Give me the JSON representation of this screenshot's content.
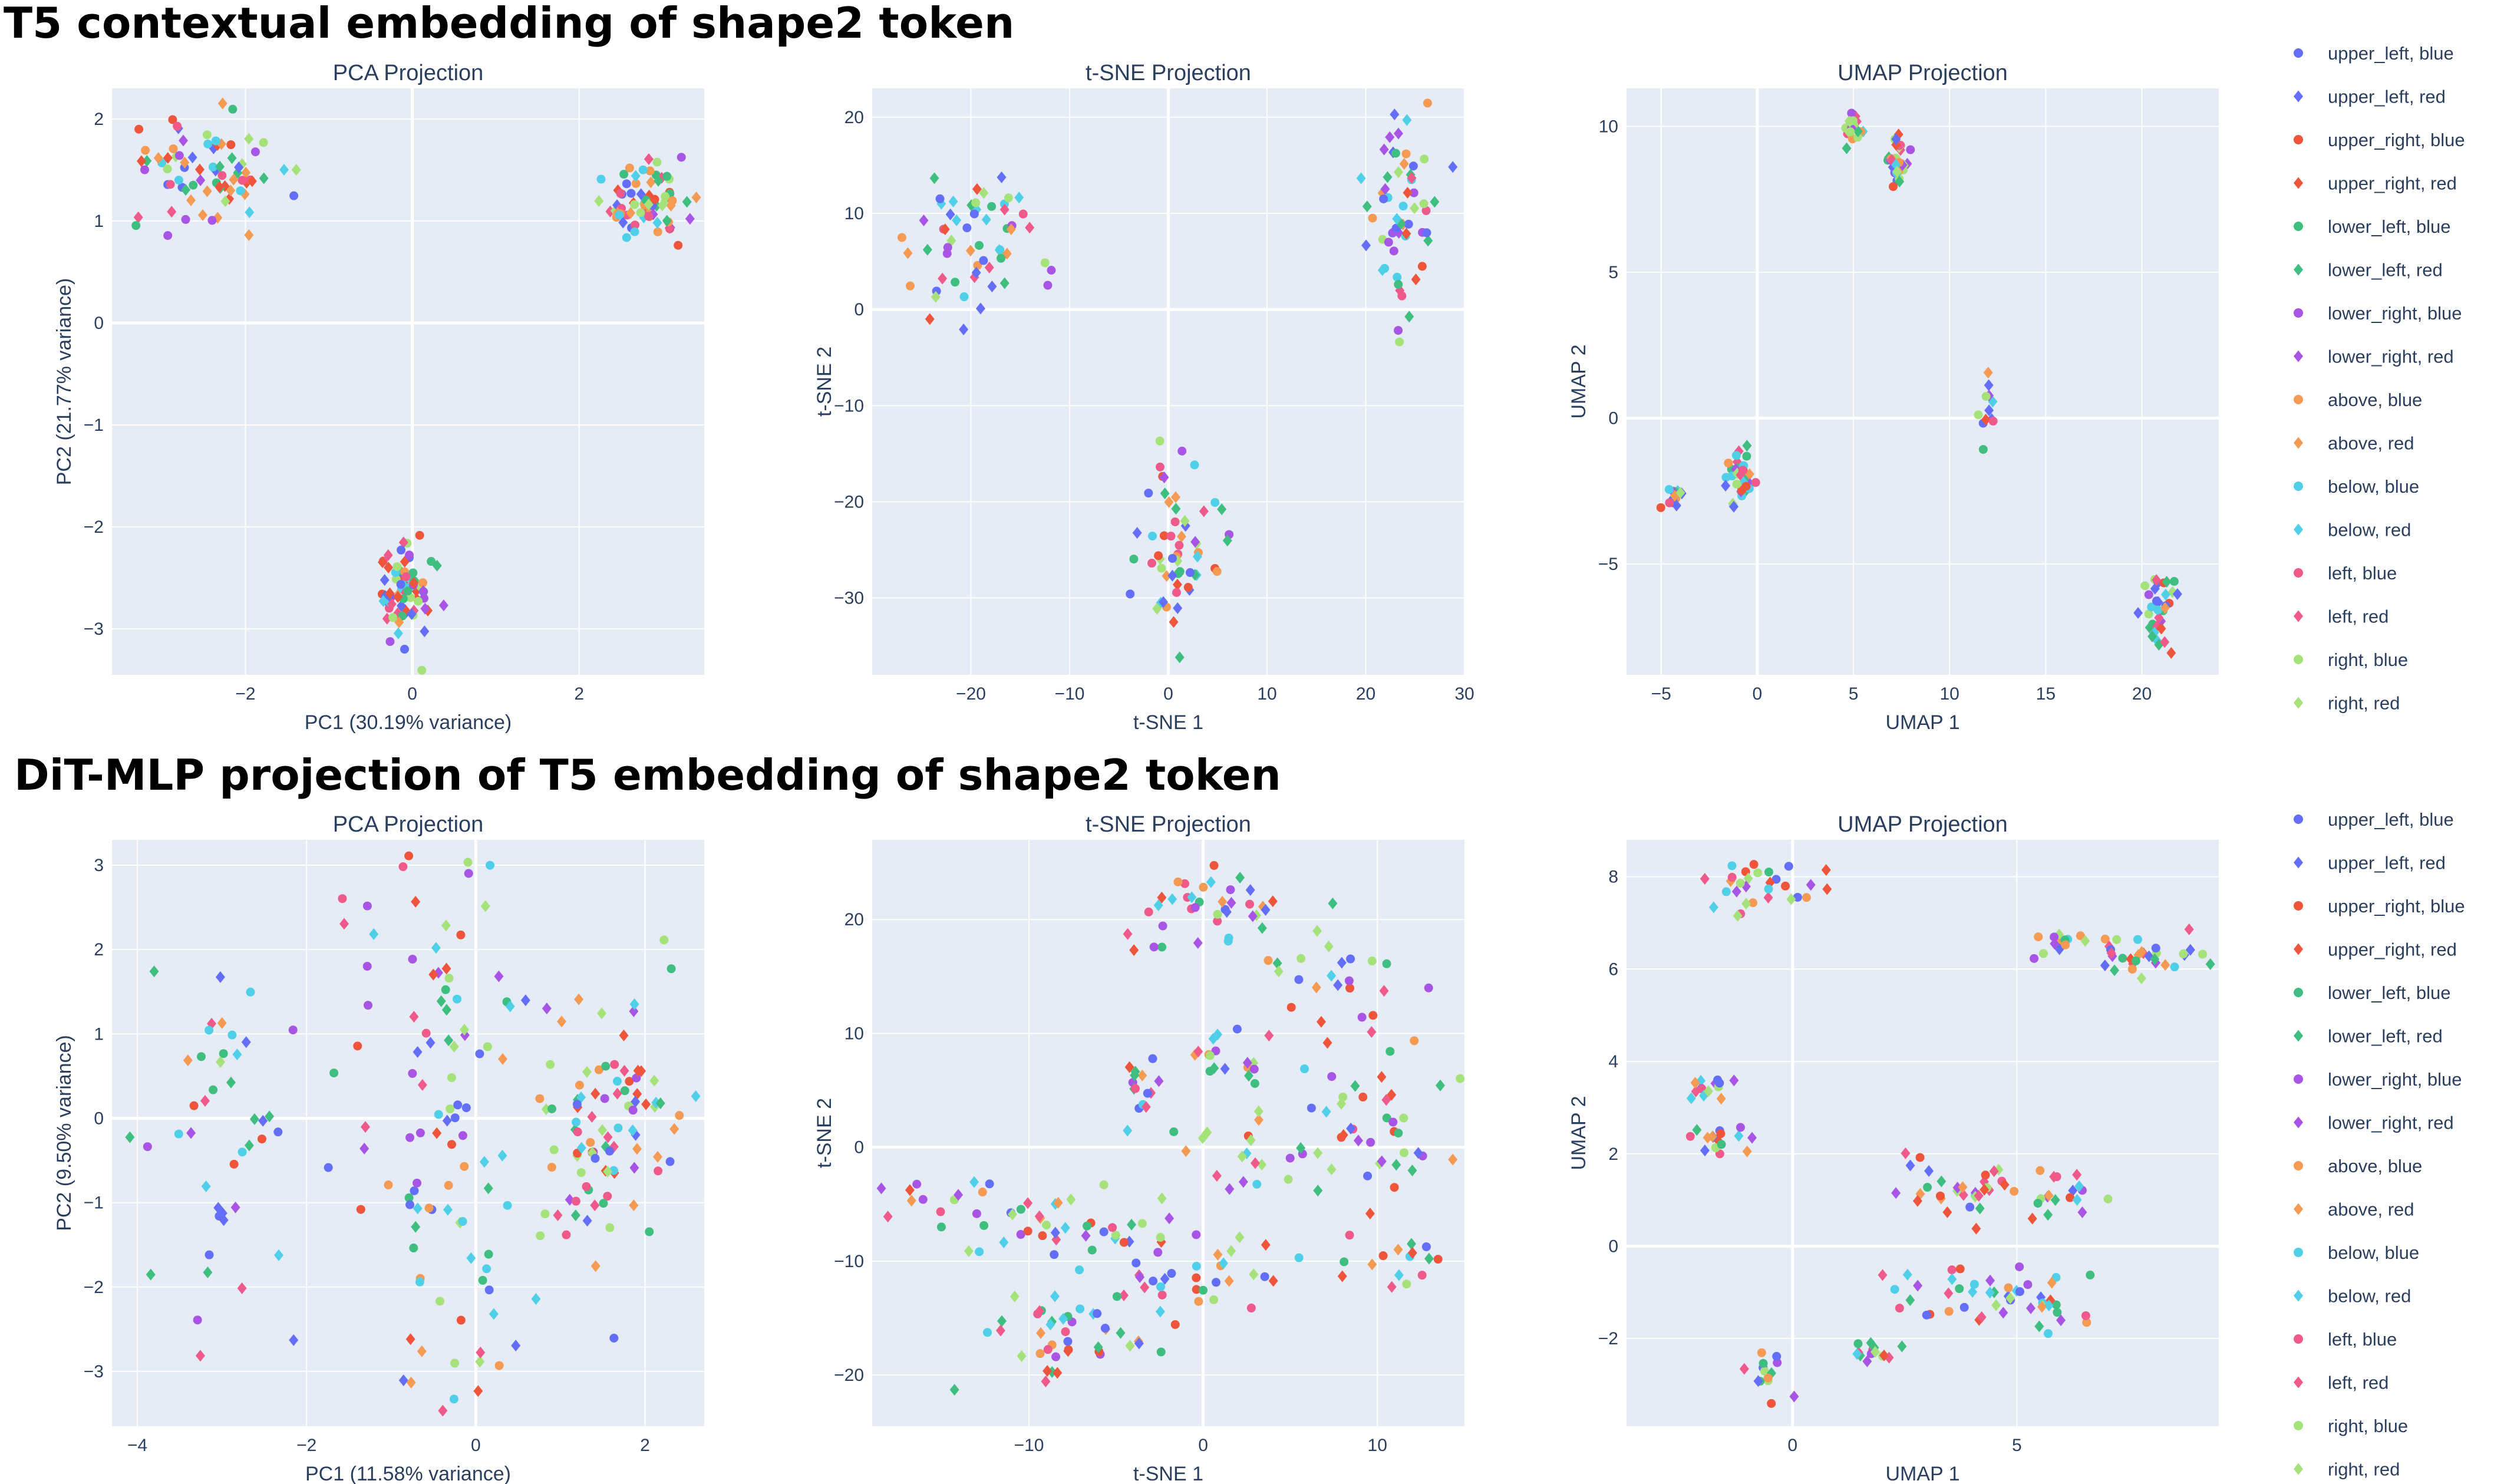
{
  "figure_titles": [
    "T5 contextual embedding of shape2 token",
    "DiT-MLP projection of T5 embedding of shape2 token"
  ],
  "legend": [
    {
      "label": "upper_left, blue",
      "color": "#636efa",
      "symbol": "circle"
    },
    {
      "label": "upper_left, red",
      "color": "#636efa",
      "symbol": "diamond"
    },
    {
      "label": "upper_right, blue",
      "color": "#ef553b",
      "symbol": "circle"
    },
    {
      "label": "upper_right, red",
      "color": "#ef553b",
      "symbol": "diamond"
    },
    {
      "label": "lower_left, blue",
      "color": "#3fbf7f",
      "symbol": "circle"
    },
    {
      "label": "lower_left, red",
      "color": "#3fbf7f",
      "symbol": "diamond"
    },
    {
      "label": "lower_right, blue",
      "color": "#a855e6",
      "symbol": "circle"
    },
    {
      "label": "lower_right, red",
      "color": "#a855e6",
      "symbol": "diamond"
    },
    {
      "label": "above, blue",
      "color": "#f49a52",
      "symbol": "circle"
    },
    {
      "label": "above, red",
      "color": "#f49a52",
      "symbol": "diamond"
    },
    {
      "label": "below, blue",
      "color": "#4fd0e8",
      "symbol": "circle"
    },
    {
      "label": "below, red",
      "color": "#4fd0e8",
      "symbol": "diamond"
    },
    {
      "label": "left, blue",
      "color": "#ef5a8a",
      "symbol": "circle"
    },
    {
      "label": "left, red",
      "color": "#ef5a8a",
      "symbol": "diamond"
    },
    {
      "label": "right, blue",
      "color": "#a6e27a",
      "symbol": "circle"
    },
    {
      "label": "right, red",
      "color": "#a6e27a",
      "symbol": "diamond"
    }
  ],
  "chart_data": [
    {
      "type": "scatter",
      "title": "PCA Projection",
      "xlabel": "PC1 (30.19% variance)",
      "ylabel": "PC2 (21.77% variance)",
      "xlim": [
        -3.6,
        3.5
      ],
      "ylim": [
        -3.45,
        2.3
      ],
      "xticks": [
        -2,
        0,
        2
      ],
      "yticks": [
        -3,
        -2,
        -1,
        0,
        1,
        2
      ],
      "tick_text_x": [
        "−2",
        "0",
        "2"
      ],
      "tick_text_y": [
        "−3",
        "−2",
        "−1",
        "0",
        "1",
        "2"
      ],
      "clusters": [
        {
          "cx": -2.5,
          "cy": 1.45,
          "sx": 0.45,
          "sy": 0.32,
          "n": 80
        },
        {
          "cx": 2.8,
          "cy": 1.2,
          "sx": 0.25,
          "sy": 0.22,
          "n": 80
        },
        {
          "cx": -0.1,
          "cy": -2.6,
          "sx": 0.16,
          "sy": 0.22,
          "n": 80
        }
      ]
    },
    {
      "type": "scatter",
      "title": "t-SNE Projection",
      "xlabel": "t-SNE 1",
      "ylabel": "t-SNE 2",
      "xlim": [
        -30,
        30
      ],
      "ylim": [
        -38,
        23
      ],
      "xticks": [
        -20,
        -10,
        0,
        10,
        20,
        30
      ],
      "yticks": [
        -30,
        -20,
        -10,
        0,
        10,
        20
      ],
      "tick_text_x": [
        "−20",
        "−10",
        "0",
        "10",
        "20",
        "30"
      ],
      "tick_text_y": [
        "−30",
        "−20",
        "−10",
        "0",
        "10",
        "20"
      ],
      "clusters": [
        {
          "cx": -20,
          "cy": 7,
          "sx": 3,
          "sy": 4,
          "n": 60
        },
        {
          "cx": 23,
          "cy": 10,
          "sx": 2,
          "sy": 5,
          "n": 60
        },
        {
          "cx": 1,
          "cy": -25,
          "sx": 2,
          "sy": 5,
          "n": 60
        }
      ]
    },
    {
      "type": "scatter",
      "title": "UMAP Projection",
      "xlabel": "UMAP 1",
      "ylabel": "UMAP 2",
      "xlim": [
        -6.8,
        24
      ],
      "ylim": [
        -8.8,
        11.3
      ],
      "xticks": [
        -5,
        0,
        5,
        10,
        15,
        20
      ],
      "yticks": [
        -5,
        0,
        5,
        10
      ],
      "tick_text_x": [
        "−5",
        "0",
        "5",
        "10",
        "15",
        "20"
      ],
      "tick_text_y": [
        "−5",
        "0",
        "5",
        "10"
      ],
      "clusters": [
        {
          "cx": 5,
          "cy": 10,
          "sx": 0.3,
          "sy": 0.25,
          "n": 20
        },
        {
          "cx": 7.3,
          "cy": 8.8,
          "sx": 0.4,
          "sy": 0.5,
          "n": 35
        },
        {
          "cx": 12,
          "cy": 0.2,
          "sx": 0.25,
          "sy": 0.5,
          "n": 12
        },
        {
          "cx": -4.5,
          "cy": -3,
          "sx": 0.3,
          "sy": 0.3,
          "n": 15
        },
        {
          "cx": -1,
          "cy": -2,
          "sx": 0.35,
          "sy": 0.5,
          "n": 40
        },
        {
          "cx": 21,
          "cy": -6.5,
          "sx": 0.5,
          "sy": 0.6,
          "n": 35
        }
      ]
    },
    {
      "type": "scatter",
      "title": "PCA Projection",
      "xlabel": "PC1 (11.58% variance)",
      "ylabel": "PC2 (9.50% variance)",
      "xlim": [
        -4.3,
        2.7
      ],
      "ylim": [
        -3.65,
        3.3
      ],
      "xticks": [
        -4,
        -2,
        0,
        2
      ],
      "yticks": [
        -3,
        -2,
        -1,
        0,
        1,
        2,
        3
      ],
      "tick_text_x": [
        "−4",
        "−2",
        "0",
        "2"
      ],
      "tick_text_y": [
        "−3",
        "−2",
        "−1",
        "0",
        "1",
        "2",
        "3"
      ],
      "clusters": [
        {
          "cx": -3,
          "cy": 0,
          "sx": 0.45,
          "sy": 1.3,
          "n": 45
        },
        {
          "cx": -0.3,
          "cy": -1.5,
          "sx": 0.6,
          "sy": 1.2,
          "n": 60
        },
        {
          "cx": -0.5,
          "cy": 1.5,
          "sx": 0.6,
          "sy": 0.9,
          "n": 50
        },
        {
          "cx": 1.6,
          "cy": 0.1,
          "sx": 0.45,
          "sy": 0.8,
          "n": 90
        }
      ]
    },
    {
      "type": "scatter",
      "title": "t-SNE Projection",
      "xlabel": "t-SNE 1",
      "ylabel": "t-SNE 2",
      "xlim": [
        -19,
        15
      ],
      "ylim": [
        -24.5,
        27
      ],
      "xticks": [
        -10,
        0,
        10
      ],
      "yticks": [
        -20,
        -10,
        0,
        10,
        20
      ],
      "tick_text_x": [
        "−10",
        "0",
        "10"
      ],
      "tick_text_y": [
        "−20",
        "−10",
        "0",
        "10",
        "20"
      ],
      "clusters": [
        {
          "cx": 0,
          "cy": 21,
          "sx": 3,
          "sy": 2,
          "n": 40
        },
        {
          "cx": 7,
          "cy": 15,
          "sx": 2,
          "sy": 1.5,
          "n": 18
        },
        {
          "cx": -3.5,
          "cy": 5,
          "sx": 1,
          "sy": 1.5,
          "n": 16
        },
        {
          "cx": 3,
          "cy": 8,
          "sx": 2.5,
          "sy": 1.5,
          "n": 20
        },
        {
          "cx": 9.5,
          "cy": 4,
          "sx": 2,
          "sy": 4,
          "n": 30
        },
        {
          "cx": 5,
          "cy": -1,
          "sx": 4,
          "sy": 2,
          "n": 35
        },
        {
          "cx": -15,
          "cy": -6,
          "sx": 2,
          "sy": 1.5,
          "n": 20
        },
        {
          "cx": -8,
          "cy": -7,
          "sx": 1.5,
          "sy": 1.5,
          "n": 20
        },
        {
          "cx": -4,
          "cy": -7,
          "sx": 2.5,
          "sy": 1.5,
          "n": 16
        },
        {
          "cx": 2,
          "cy": -12,
          "sx": 2,
          "sy": 2,
          "n": 20
        },
        {
          "cx": 11,
          "cy": -10,
          "sx": 1.5,
          "sy": 1.5,
          "n": 16
        },
        {
          "cx": -10,
          "cy": -17,
          "sx": 2,
          "sy": 2.5,
          "n": 28
        },
        {
          "cx": -5,
          "cy": -16,
          "sx": 1.5,
          "sy": 2,
          "n": 14
        },
        {
          "cx": -3,
          "cy": -12,
          "sx": 1.5,
          "sy": 1,
          "n": 10
        }
      ]
    },
    {
      "type": "scatter",
      "title": "UMAP Projection",
      "xlabel": "UMAP 1",
      "ylabel": "UMAP 2",
      "xlim": [
        -3.7,
        9.5
      ],
      "ylim": [
        -3.9,
        8.8
      ],
      "xticks": [
        0,
        5
      ],
      "yticks": [
        -2,
        0,
        2,
        4,
        6,
        8
      ],
      "tick_text_x": [
        "0",
        "5"
      ],
      "tick_text_y": [
        "−2",
        "0",
        "2",
        "4",
        "6",
        "8"
      ],
      "clusters": [
        {
          "cx": -0.6,
          "cy": 7.8,
          "sx": 0.7,
          "sy": 0.25,
          "n": 30
        },
        {
          "cx": 6,
          "cy": 6.6,
          "sx": 0.5,
          "sy": 0.15,
          "n": 16
        },
        {
          "cx": 8,
          "cy": 6.2,
          "sx": 0.6,
          "sy": 0.2,
          "n": 30
        },
        {
          "cx": -2,
          "cy": 3.4,
          "sx": 0.3,
          "sy": 0.15,
          "n": 14
        },
        {
          "cx": -1.6,
          "cy": 2.3,
          "sx": 0.35,
          "sy": 0.15,
          "n": 16
        },
        {
          "cx": 4,
          "cy": 1.3,
          "sx": 1,
          "sy": 0.3,
          "n": 35
        },
        {
          "cx": 6,
          "cy": 1.1,
          "sx": 0.4,
          "sy": 0.3,
          "n": 16
        },
        {
          "cx": 4,
          "cy": -1,
          "sx": 1,
          "sy": 0.3,
          "n": 35
        },
        {
          "cx": 6,
          "cy": -1.3,
          "sx": 0.4,
          "sy": 0.3,
          "n": 14
        },
        {
          "cx": -0.6,
          "cy": -2.8,
          "sx": 0.2,
          "sy": 0.2,
          "n": 14
        },
        {
          "cx": 1.7,
          "cy": -2.3,
          "sx": 0.3,
          "sy": 0.15,
          "n": 14
        }
      ]
    }
  ]
}
